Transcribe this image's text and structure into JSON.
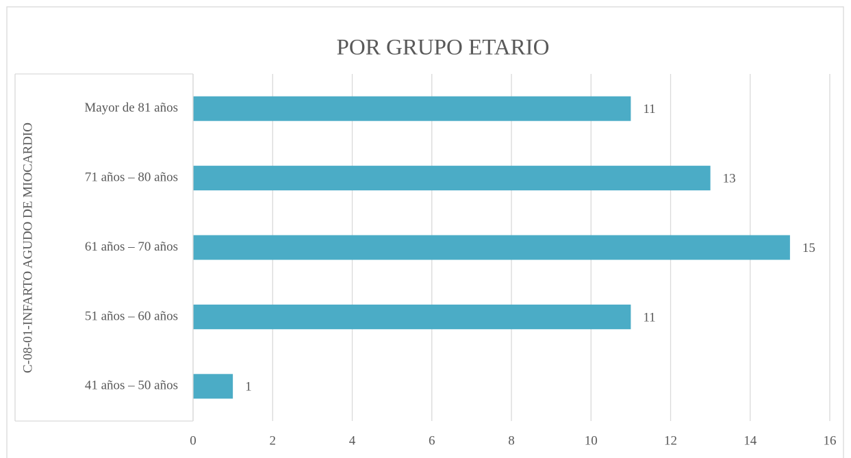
{
  "chart_data": {
    "type": "hbar",
    "title": "POR GRUPO ETARIO",
    "category_group": "C-08-01-INFARTO AGUDO DE MIOCARDIO",
    "categories": [
      "Mayor de 81 años",
      "71 años – 80 años",
      "61 años – 70 años",
      "51 años – 60 años",
      "41 años – 50 años"
    ],
    "values": [
      11,
      13,
      15,
      11,
      1
    ],
    "color": "#4bacc6",
    "xlim": [
      0,
      16
    ],
    "xticks": [
      0,
      2,
      4,
      6,
      8,
      10,
      12,
      14,
      16
    ],
    "grid": true
  }
}
